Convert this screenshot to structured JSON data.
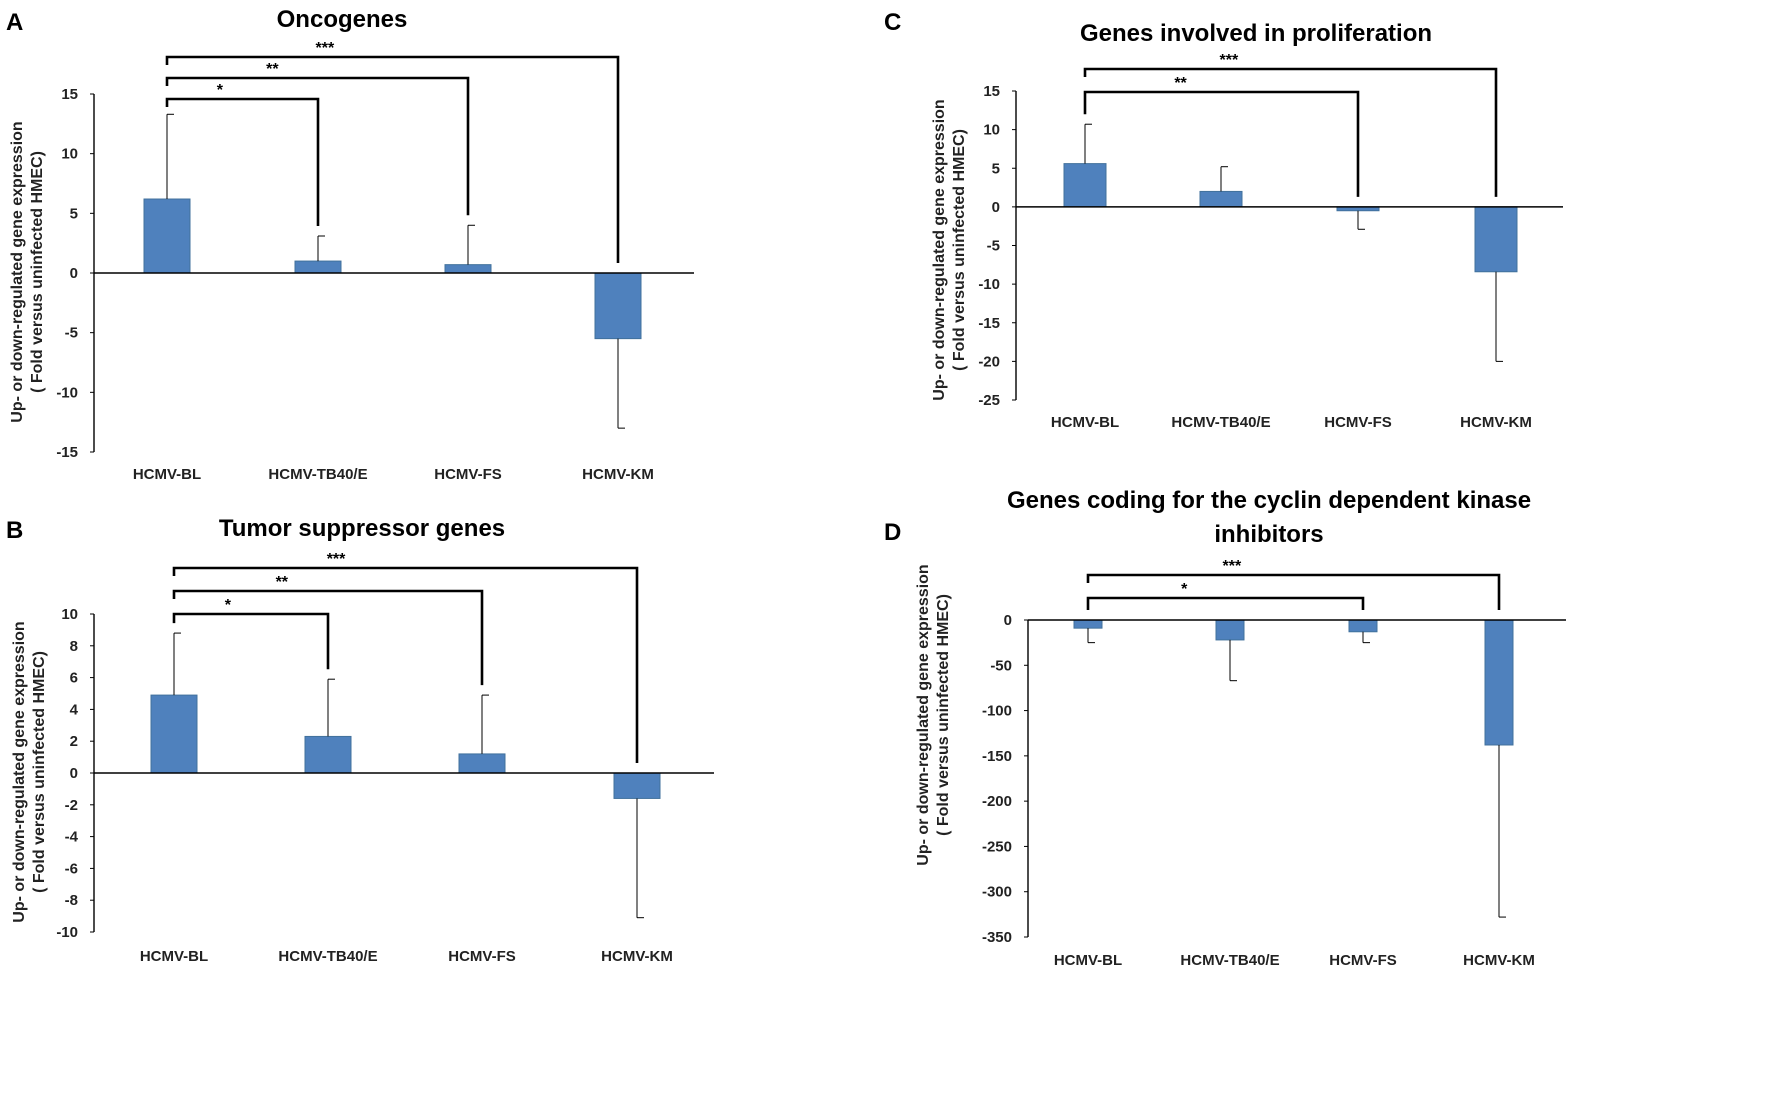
{
  "figure": {
    "panel_letters": [
      "A",
      "B",
      "C",
      "D"
    ]
  },
  "chart_data": [
    {
      "panel": "A",
      "type": "bar",
      "title": "Oncogenes",
      "ylabel_line1": "Up- or down-regulated gene expression",
      "ylabel_line2": "( Fold versus uninfected HMEC)",
      "categories": [
        "HCMV-BL",
        "HCMV-TB40/E",
        "HCMV-FS",
        "HCMV-KM"
      ],
      "values": [
        6.2,
        1.0,
        0.7,
        -5.5
      ],
      "errors": [
        7.1,
        2.1,
        3.3,
        7.5
      ],
      "ylim": [
        -15,
        15
      ],
      "yticks": [
        15,
        10,
        5,
        0,
        -5,
        -10,
        -15
      ],
      "significance": [
        {
          "from": "HCMV-BL",
          "to": "HCMV-TB40/E",
          "label": "*"
        },
        {
          "from": "HCMV-BL",
          "to": "HCMV-FS",
          "label": "**"
        },
        {
          "from": "HCMV-BL",
          "to": "HCMV-KM",
          "label": "***"
        }
      ]
    },
    {
      "panel": "B",
      "type": "bar",
      "title": "Tumor suppressor genes",
      "ylabel_line1": "Up- or down-regulated gene expression",
      "ylabel_line2": "( Fold versus uninfected HMEC)",
      "categories": [
        "HCMV-BL",
        "HCMV-TB40/E",
        "HCMV-FS",
        "HCMV-KM"
      ],
      "values": [
        4.9,
        2.3,
        1.2,
        -1.6
      ],
      "errors": [
        3.9,
        3.6,
        3.7,
        7.5
      ],
      "ylim": [
        -10,
        10
      ],
      "yticks": [
        10,
        8,
        6,
        4,
        2,
        0,
        -2,
        -4,
        -6,
        -8,
        -10
      ],
      "significance": [
        {
          "from": "HCMV-BL",
          "to": "HCMV-TB40/E",
          "label": "*"
        },
        {
          "from": "HCMV-BL",
          "to": "HCMV-FS",
          "label": "**"
        },
        {
          "from": "HCMV-BL",
          "to": "HCMV-KM",
          "label": "***"
        }
      ]
    },
    {
      "panel": "C",
      "type": "bar",
      "title": "Genes involved in proliferation",
      "ylabel_line1": "Up- or down-regulated gene expression",
      "ylabel_line2": "( Fold versus uninfected HMEC)",
      "categories": [
        "HCMV-BL",
        "HCMV-TB40/E",
        "HCMV-FS",
        "HCMV-KM"
      ],
      "values": [
        5.6,
        2.0,
        -0.5,
        -8.4
      ],
      "errors": [
        5.1,
        3.2,
        2.4,
        11.6
      ],
      "ylim": [
        -25,
        15
      ],
      "yticks": [
        15,
        10,
        5,
        0,
        -5,
        -10,
        -15,
        -20,
        -25
      ],
      "significance": [
        {
          "from": "HCMV-BL",
          "to": "HCMV-FS",
          "label": "**"
        },
        {
          "from": "HCMV-BL",
          "to": "HCMV-KM",
          "label": "***"
        }
      ]
    },
    {
      "panel": "D",
      "type": "bar",
      "title_line1": "Genes coding for the cyclin dependent kinase",
      "title_line2": "inhibitors",
      "ylabel_line1": "Up- or down-regulated gene expression",
      "ylabel_line2": "( Fold versus uninfected HMEC)",
      "categories": [
        "HCMV-BL",
        "HCMV-TB40/E",
        "HCMV-FS",
        "HCMV-KM"
      ],
      "values": [
        -9,
        -22,
        -13,
        -138
      ],
      "errors": [
        16,
        45,
        12,
        190
      ],
      "ylim": [
        -350,
        0
      ],
      "yticks": [
        0,
        -50,
        -100,
        -150,
        -200,
        -250,
        -300,
        -350
      ],
      "significance": [
        {
          "from": "HCMV-BL",
          "to": "HCMV-FS",
          "label": "*"
        },
        {
          "from": "HCMV-BL",
          "to": "HCMV-KM",
          "label": "***"
        }
      ]
    }
  ]
}
